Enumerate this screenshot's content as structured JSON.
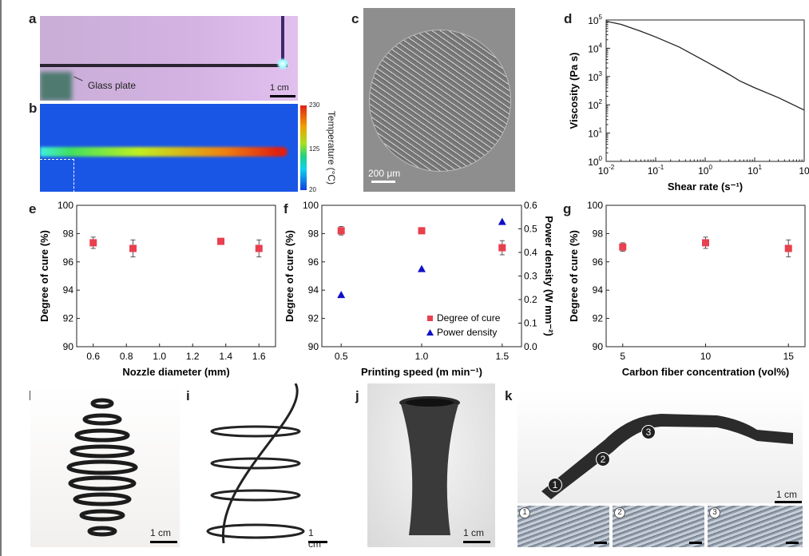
{
  "panels": {
    "a": "a",
    "b": "b",
    "c": "c",
    "d": "d",
    "e": "e",
    "f": "f",
    "g": "g",
    "h": "h",
    "i": "i",
    "j": "j",
    "k": "k"
  },
  "photo_a": {
    "annotation": "Glass plate",
    "scale": "1 cm"
  },
  "photo_b": {
    "colorbar_title": "Temperature (°C)",
    "colorbar_max": "230",
    "colorbar_mid": "125",
    "colorbar_min": "20"
  },
  "photo_c": {
    "scale": "200 μm"
  },
  "photo_h": {
    "scale": "1 cm"
  },
  "photo_i": {
    "scale": "1 cm"
  },
  "photo_j": {
    "scale": "1 cm"
  },
  "photo_k": {
    "scale": "1 cm",
    "markers": [
      "1",
      "2",
      "3"
    ]
  },
  "colors": {
    "cure": "#e8404f",
    "power": "#1010c8",
    "line": "#222222"
  },
  "chart_data": [
    {
      "id": "d",
      "type": "line",
      "xlabel": "Shear rate (s⁻¹)",
      "ylabel": "Viscosity (Pa s)",
      "xscale": "log",
      "yscale": "log",
      "xlim": [
        0.01,
        100
      ],
      "ylim": [
        1,
        100000
      ],
      "xticks": [
        {
          "v": 0.01,
          "b": "10",
          "e": "-2"
        },
        {
          "v": 0.1,
          "b": "10",
          "e": "-1"
        },
        {
          "v": 1,
          "b": "10",
          "e": "0"
        },
        {
          "v": 10,
          "b": "10",
          "e": "1"
        },
        {
          "v": 100,
          "b": "10",
          "e": ""
        }
      ],
      "yticks": [
        {
          "v": 1,
          "b": "10",
          "e": "0"
        },
        {
          "v": 10,
          "b": "10",
          "e": "1"
        },
        {
          "v": 100,
          "b": "10",
          "e": "2"
        },
        {
          "v": 1000,
          "b": "10",
          "e": "3"
        },
        {
          "v": 10000,
          "b": "10",
          "e": "4"
        },
        {
          "v": 100000,
          "b": "10",
          "e": "5"
        }
      ],
      "x": [
        0.01,
        0.02,
        0.05,
        0.1,
        0.3,
        1,
        3,
        5,
        10,
        30,
        100
      ],
      "y": [
        90000,
        70000,
        40000,
        25000,
        11000,
        3500,
        1200,
        700,
        400,
        180,
        65
      ]
    },
    {
      "id": "e",
      "type": "scatter",
      "xlabel": "Nozzle diameter (mm)",
      "ylabel": "Degree of cure (%)",
      "xlim": [
        0.5,
        1.7
      ],
      "ylim": [
        90,
        100
      ],
      "xticks": [
        "0.6",
        "0.8",
        "1.0",
        "1.2",
        "1.4",
        "1.6"
      ],
      "yticks": [
        "90",
        "92",
        "94",
        "96",
        "98",
        "100"
      ],
      "series": [
        {
          "name": "Degree of cure",
          "x": [
            0.6,
            0.84,
            1.37,
            1.6
          ],
          "y": [
            97.35,
            96.95,
            97.45,
            96.95
          ],
          "err": [
            0.4,
            0.6,
            0.1,
            0.6
          ]
        }
      ]
    },
    {
      "id": "f",
      "type": "scatter",
      "xlabel": "Printing speed (m min⁻¹)",
      "ylabel": "Degree of cure (%)",
      "y2label": "Power density (W mm⁻²)",
      "xlim": [
        0.38,
        1.62
      ],
      "ylim": [
        90,
        100
      ],
      "y2lim": [
        0,
        0.6
      ],
      "xticks": [
        "0.5",
        "1.0",
        "1.5"
      ],
      "yticks": [
        "90",
        "92",
        "94",
        "96",
        "98",
        "100"
      ],
      "y2ticks": [
        "0.0",
        "0.1",
        "0.2",
        "0.3",
        "0.4",
        "0.5",
        "0.6"
      ],
      "legend": {
        "position": "bottom-right",
        "entries": [
          "Degree of cure",
          "Power density"
        ]
      },
      "series": [
        {
          "name": "Degree of cure",
          "axis": "left",
          "x": [
            0.5,
            1.0,
            1.5
          ],
          "y": [
            98.2,
            98.2,
            97.0
          ],
          "err": [
            0.3,
            0.1,
            0.5
          ]
        },
        {
          "name": "Power density",
          "axis": "right",
          "x": [
            0.5,
            1.0,
            1.5
          ],
          "y": [
            0.22,
            0.33,
            0.53
          ]
        }
      ]
    },
    {
      "id": "g",
      "type": "scatter",
      "xlabel": "Carbon fiber concentration (vol%)",
      "ylabel": "Degree of cure (%)",
      "xlim": [
        4,
        16
      ],
      "ylim": [
        90,
        100
      ],
      "xticks": [
        "5",
        "10",
        "15"
      ],
      "yticks": [
        "90",
        "92",
        "94",
        "96",
        "98",
        "100"
      ],
      "series": [
        {
          "name": "Degree of cure",
          "x": [
            5,
            10,
            15
          ],
          "y": [
            97.05,
            97.35,
            96.95
          ],
          "err": [
            0.3,
            0.4,
            0.6
          ]
        }
      ]
    }
  ]
}
